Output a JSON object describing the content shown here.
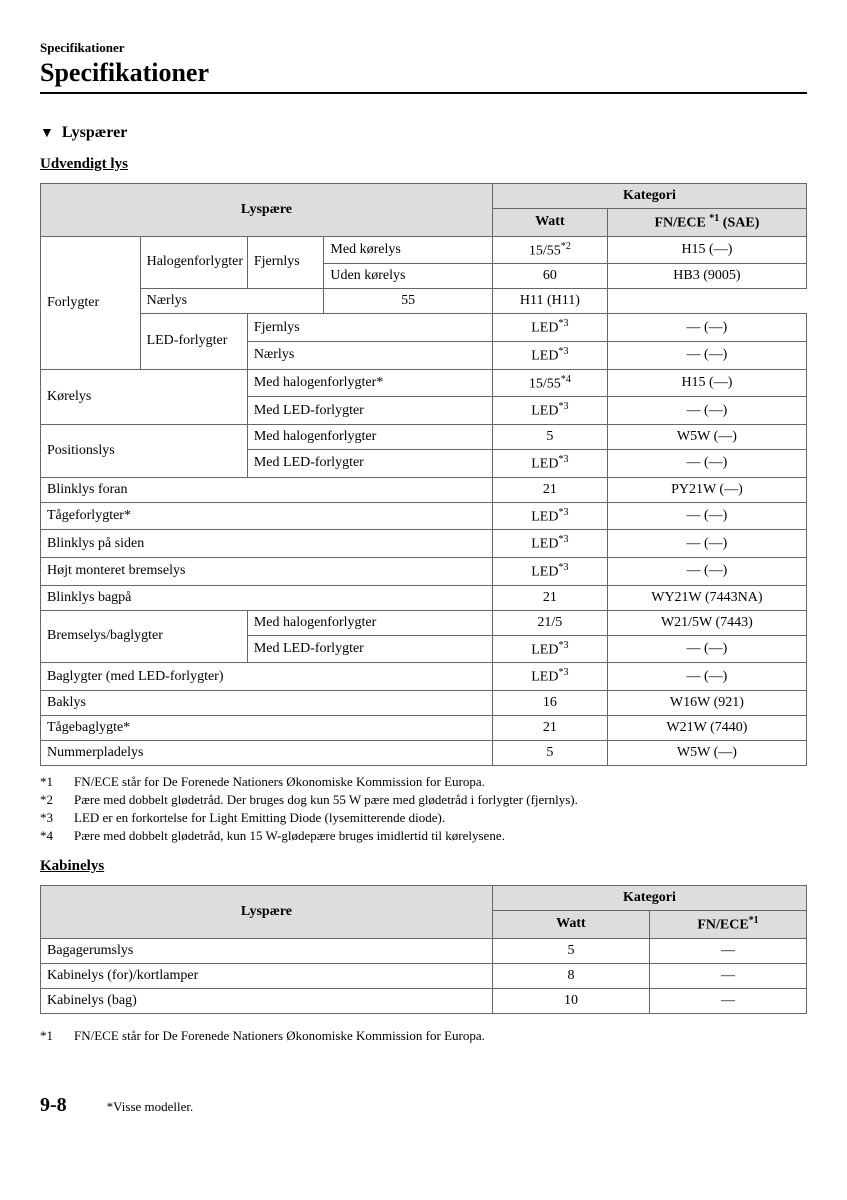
{
  "header": {
    "small": "Specifikationer",
    "big": "Specifikationer"
  },
  "section": {
    "marker": "▼",
    "title": "Lyspærer"
  },
  "table1": {
    "subtitle": "Udvendigt lys",
    "head": {
      "c1": "Lyspære",
      "c2": "Kategori",
      "c2a": "Watt",
      "c2b_pre": "FN/ECE ",
      "c2b_sup": "*1",
      "c2b_post": " (SAE)"
    },
    "rows": {
      "forlygter": "Forlygter",
      "halogen": "Halogenforlygter",
      "ledfor": "LED-forlygter",
      "fjernlys": "Fjernlys",
      "naerlys": "Nærlys",
      "medkorelys": "Med kørelys",
      "udenkorelys": "Uden kørelys",
      "korelys": "Kørelys",
      "medhalogen": "Med halogenforlygter",
      "medhalogenstar": "Med halogenforlygter*",
      "medled": "Med LED-forlygter",
      "positionslys": "Positionslys",
      "blinklysforan": "Blinklys foran",
      "taageforlygter": "Tågeforlygter*",
      "blinklysside": "Blinklys på siden",
      "hojtbremse": "Højt monteret bremselys",
      "blinklysbag": "Blinklys bagpå",
      "bremsebag": "Bremselys/baglygter",
      "baglygterled": "Baglygter (med LED-forlygter)",
      "baklys": "Baklys",
      "taagebag": "Tågebaglygte*",
      "nummer": "Nummerpladelys"
    },
    "vals": {
      "r1w": "15/55",
      "r1ws": "*2",
      "r1e": "H15 (―)",
      "r2w": "60",
      "r2e": "HB3 (9005)",
      "r3w": "55",
      "r3e": "H11 (H11)",
      "led": "LED",
      "leds": "*3",
      "dash": "― (―)",
      "r6w": "15/55",
      "r6ws": "*4",
      "r6e": "H15 (―)",
      "r8w": "5",
      "r8e": "W5W (―)",
      "r10w": "21",
      "r10e": "PY21W (―)",
      "r14w": "21",
      "r14e": "WY21W (7443NA)",
      "r15w": "21/5",
      "r15e": "W21/5W (7443)",
      "r18w": "16",
      "r18e": "W16W (921)",
      "r19w": "21",
      "r19e": "W21W (7440)",
      "r20w": "5",
      "r20e": "W5W (―)"
    }
  },
  "notes1": [
    {
      "k": "*1",
      "t": "FN/ECE står for De Forenede Nationers Økonomiske Kommission for Europa."
    },
    {
      "k": "*2",
      "t": "Pære med dobbelt glødetråd. Der bruges dog kun 55 W pære med glødetråd i forlygter (fjernlys)."
    },
    {
      "k": "*3",
      "t": "LED er en forkortelse for Light Emitting Diode (lysemitterende diode)."
    },
    {
      "k": "*4",
      "t": "Pære med dobbelt glødetråd, kun 15 W-glødepære bruges imidlertid til kørelysene."
    }
  ],
  "table2": {
    "subtitle": "Kabinelys",
    "head": {
      "c1": "Lyspære",
      "c2": "Kategori",
      "c2a": "Watt",
      "c2b_pre": "FN/ECE",
      "c2b_sup": "*1"
    },
    "rows": [
      {
        "l": "Bagagerumslys",
        "w": "5",
        "e": "―"
      },
      {
        "l": "Kabinelys (for)/kortlamper",
        "w": "8",
        "e": "―"
      },
      {
        "l": "Kabinelys (bag)",
        "w": "10",
        "e": "―"
      }
    ]
  },
  "notes2": [
    {
      "k": "*1",
      "t": "FN/ECE står for De Forenede Nationers Økonomiske Kommission for Europa."
    }
  ],
  "footer": {
    "page": "9-8",
    "note": "*Visse modeller."
  }
}
